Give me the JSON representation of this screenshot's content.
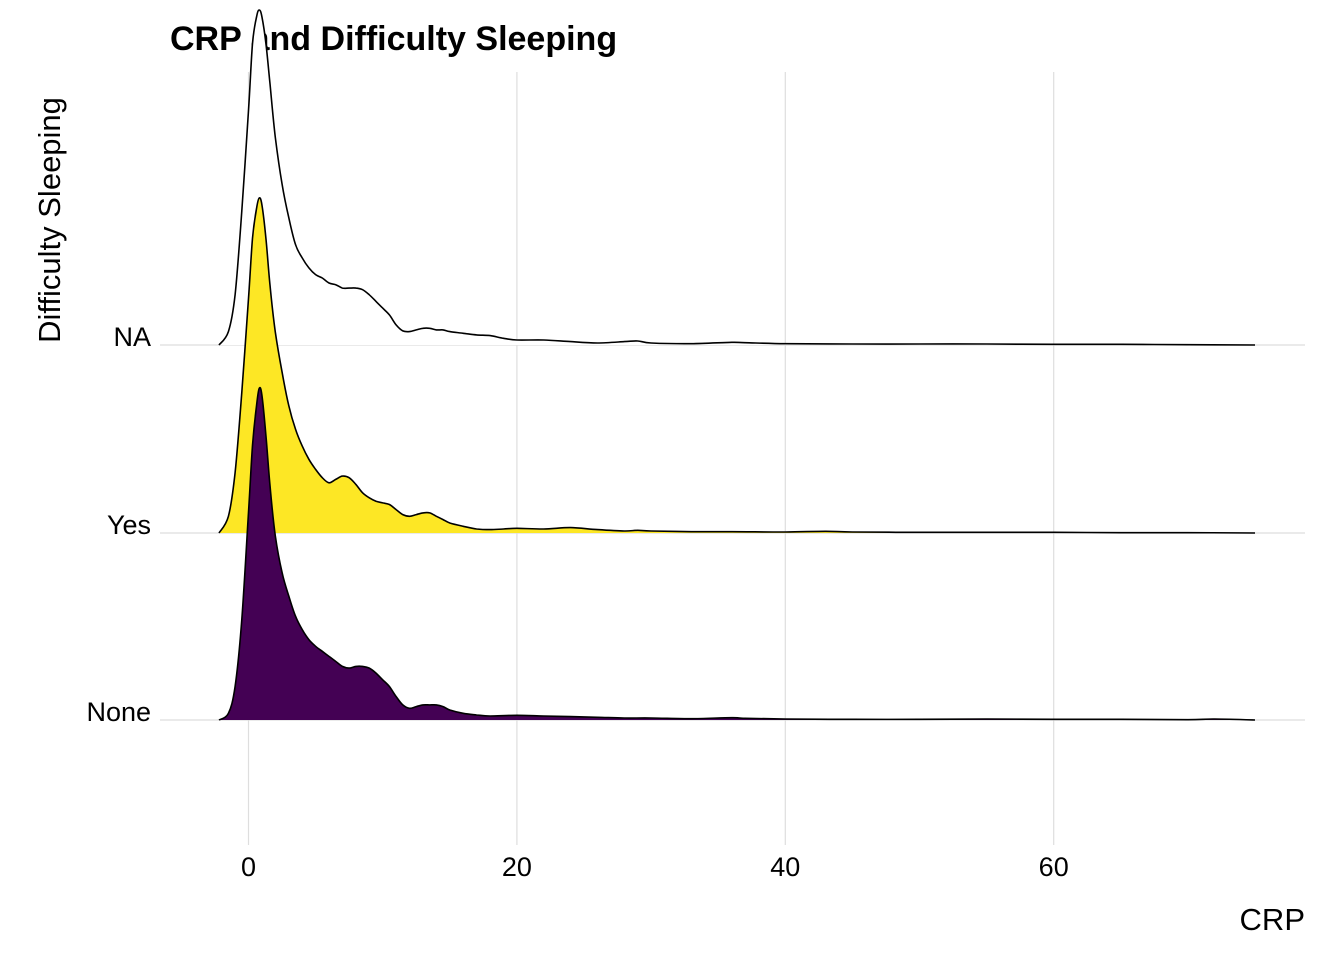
{
  "chart_data": {
    "type": "ridgeline",
    "title": "CRP and Difficulty Sleeping",
    "xlabel": "CRP",
    "ylabel": "Difficulty Sleeping",
    "xlim": [
      -2.2,
      75
    ],
    "x_ticks": [
      "0",
      "20",
      "40",
      "60"
    ],
    "x_tick_values": [
      0,
      20,
      40,
      60
    ],
    "grid": true,
    "categories": [
      "None",
      "Yes",
      "NA"
    ],
    "series": [
      {
        "name": "None",
        "fill": "#440154",
        "x": [
          -2.2,
          -1.5,
          -1,
          -0.5,
          0,
          0.3,
          0.6,
          0.8,
          1,
          1.3,
          1.6,
          2,
          2.5,
          3,
          3.5,
          4,
          4.5,
          5,
          5.5,
          6,
          6.5,
          7,
          7.5,
          8,
          8.5,
          9,
          9.5,
          10,
          10.5,
          11,
          11.5,
          12,
          12.5,
          13,
          13.5,
          14,
          14.5,
          15,
          16,
          17,
          18,
          20,
          22,
          24,
          26,
          28,
          30,
          33,
          36,
          37,
          40,
          45,
          50,
          55,
          60,
          65,
          70,
          72,
          75
        ],
        "y": [
          0,
          0.02,
          0.1,
          0.3,
          0.62,
          0.82,
          0.94,
          0.99,
          0.97,
          0.85,
          0.7,
          0.55,
          0.44,
          0.37,
          0.31,
          0.27,
          0.24,
          0.22,
          0.205,
          0.19,
          0.175,
          0.16,
          0.155,
          0.16,
          0.16,
          0.155,
          0.14,
          0.12,
          0.1,
          0.07,
          0.045,
          0.035,
          0.04,
          0.045,
          0.045,
          0.045,
          0.04,
          0.03,
          0.02,
          0.015,
          0.012,
          0.014,
          0.012,
          0.01,
          0.008,
          0.006,
          0.006,
          0.004,
          0.007,
          0.005,
          0.003,
          0.002,
          0.002,
          0.003,
          0.002,
          0.002,
          0.001,
          0.003,
          0
        ]
      },
      {
        "name": "Yes",
        "fill": "#fde725",
        "x": [
          -2.2,
          -1.5,
          -1,
          -0.5,
          0,
          0.3,
          0.6,
          0.8,
          1,
          1.3,
          1.6,
          2,
          2.5,
          3,
          3.5,
          4,
          4.5,
          5,
          5.5,
          6,
          6.5,
          7,
          7.5,
          8,
          8.5,
          9,
          9.5,
          10,
          10.5,
          11,
          11.5,
          12,
          12.5,
          13,
          13.5,
          14,
          14.5,
          15,
          16,
          17,
          18,
          19,
          20,
          22,
          24,
          26,
          28,
          29,
          30,
          33,
          36,
          40,
          43,
          45,
          50,
          55,
          60,
          65,
          70,
          75
        ],
        "y": [
          0,
          0.05,
          0.18,
          0.42,
          0.7,
          0.88,
          0.97,
          1.0,
          0.98,
          0.88,
          0.74,
          0.6,
          0.48,
          0.38,
          0.31,
          0.26,
          0.22,
          0.19,
          0.165,
          0.15,
          0.16,
          0.17,
          0.165,
          0.145,
          0.12,
          0.105,
          0.095,
          0.09,
          0.085,
          0.07,
          0.055,
          0.05,
          0.055,
          0.06,
          0.06,
          0.05,
          0.04,
          0.03,
          0.02,
          0.012,
          0.01,
          0.012,
          0.014,
          0.012,
          0.016,
          0.01,
          0.006,
          0.008,
          0.006,
          0.004,
          0.004,
          0.003,
          0.005,
          0.003,
          0.002,
          0.002,
          0.002,
          0.001,
          0.001,
          0
        ]
      },
      {
        "name": "NA",
        "fill": "#ffffff",
        "x": [
          -2.2,
          -1.5,
          -1,
          -0.5,
          0,
          0.3,
          0.6,
          0.8,
          1,
          1.3,
          1.6,
          2,
          2.5,
          3,
          3.5,
          4,
          4.5,
          5,
          5.5,
          6,
          6.5,
          7,
          7.5,
          8,
          8.5,
          9,
          9.5,
          10,
          10.5,
          11,
          11.5,
          12,
          12.5,
          13,
          13.5,
          14,
          14.5,
          15,
          16,
          17,
          18,
          19,
          20,
          22,
          24,
          26,
          28,
          29,
          30,
          33,
          36,
          37,
          40,
          45,
          50,
          55,
          60,
          65,
          70,
          75
        ],
        "y": [
          0,
          0.04,
          0.15,
          0.4,
          0.7,
          0.9,
          0.98,
          1.0,
          0.98,
          0.9,
          0.78,
          0.62,
          0.48,
          0.38,
          0.3,
          0.26,
          0.23,
          0.21,
          0.2,
          0.185,
          0.18,
          0.17,
          0.17,
          0.17,
          0.165,
          0.15,
          0.13,
          0.11,
          0.09,
          0.06,
          0.042,
          0.04,
          0.045,
          0.05,
          0.05,
          0.045,
          0.045,
          0.04,
          0.035,
          0.03,
          0.028,
          0.02,
          0.015,
          0.015,
          0.01,
          0.006,
          0.01,
          0.012,
          0.006,
          0.004,
          0.008,
          0.007,
          0.004,
          0.003,
          0.003,
          0.003,
          0.002,
          0.002,
          0.001,
          0
        ]
      }
    ]
  }
}
